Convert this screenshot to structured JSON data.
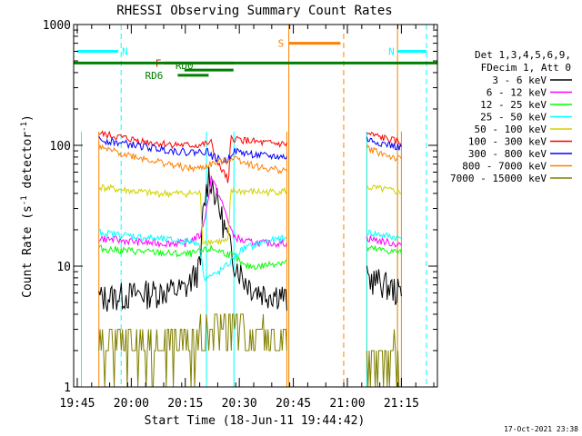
{
  "chart_data": {
    "type": "line",
    "title": "RHESSI Observing Summary Count Rates",
    "xlabel": "Start Time (18-Jun-11 19:44:42)",
    "ylabel_main": "Count Rate (s",
    "ylabel_sup1": "-1",
    "ylabel_mid": " detector",
    "ylabel_sup2": "-1",
    "ylabel_end": ")",
    "y_scale": "log",
    "xlim": [
      "19:44",
      "21:25"
    ],
    "ylim": [
      1,
      1000
    ],
    "x_ticks": [
      "19:45",
      "20:00",
      "20:15",
      "20:30",
      "20:45",
      "21:00",
      "21:15"
    ],
    "y_ticks": [
      "1",
      "10",
      "100",
      "1000"
    ],
    "timestamp": "17-Oct-2021 23:38",
    "legend_header": [
      "Det 1,3,4,5,6,9,",
      "FDecim 1, Att 0"
    ],
    "series": [
      {
        "name": "3 - 6 keV",
        "color": "#000000",
        "values": [
          [
            19.85,
            5.5
          ],
          [
            20.25,
            6.5
          ],
          [
            20.32,
            10
          ],
          [
            20.33,
            25
          ],
          [
            20.36,
            60
          ],
          [
            20.38,
            45
          ],
          [
            20.42,
            25
          ],
          [
            20.47,
            12
          ],
          [
            20.52,
            8
          ],
          [
            20.57,
            6.5
          ],
          [
            20.62,
            6
          ],
          [
            20.69,
            6
          ],
          [
            20.72,
            5.2
          ],
          [
            21.09,
            8
          ],
          [
            21.15,
            7.5
          ],
          [
            21.21,
            6.5
          ],
          [
            21.25,
            6
          ]
        ]
      },
      {
        "name": "6 - 12 keV",
        "color": "#ff00ff",
        "values": [
          [
            19.85,
            17
          ],
          [
            20.1,
            15.5
          ],
          [
            20.25,
            15.5
          ],
          [
            20.32,
            18
          ],
          [
            20.35,
            30
          ],
          [
            20.37,
            55
          ],
          [
            20.39,
            45
          ],
          [
            20.43,
            30
          ],
          [
            20.47,
            18
          ],
          [
            20.52,
            16
          ],
          [
            20.62,
            15.5
          ],
          [
            20.72,
            15.5
          ],
          [
            21.09,
            17
          ],
          [
            21.25,
            15
          ]
        ]
      },
      {
        "name": "12 - 25 keV",
        "color": "#00ff00",
        "values": [
          [
            19.85,
            14
          ],
          [
            20.1,
            13
          ],
          [
            20.25,
            12.5
          ],
          [
            20.31,
            13
          ],
          [
            20.37,
            14
          ],
          [
            20.43,
            13
          ],
          [
            20.48,
            12
          ],
          [
            20.52,
            10
          ],
          [
            20.6,
            10
          ],
          [
            20.65,
            10.5
          ],
          [
            20.72,
            11
          ],
          [
            21.09,
            14
          ],
          [
            21.25,
            13
          ]
        ]
      },
      {
        "name": "25 - 50 keV",
        "color": "#00ffff",
        "values": [
          [
            19.85,
            19
          ],
          [
            20.1,
            17
          ],
          [
            20.25,
            16
          ],
          [
            20.31,
            16
          ],
          [
            20.34,
            8
          ],
          [
            20.39,
            8.5
          ],
          [
            20.44,
            10
          ],
          [
            20.48,
            12
          ],
          [
            20.52,
            14
          ],
          [
            20.62,
            16
          ],
          [
            20.72,
            17
          ],
          [
            21.09,
            19
          ],
          [
            21.25,
            17
          ]
        ]
      },
      {
        "name": "50 - 100 keV",
        "color": "#d2d200",
        "values": [
          [
            19.85,
            45
          ],
          [
            20.1,
            40
          ],
          [
            20.25,
            40
          ],
          [
            20.32,
            40
          ],
          [
            20.33,
            16
          ],
          [
            20.45,
            16
          ],
          [
            20.46,
            42
          ],
          [
            20.62,
            41
          ],
          [
            20.72,
            42
          ],
          [
            21.09,
            45
          ],
          [
            21.25,
            41
          ]
        ]
      },
      {
        "name": "100 - 300 keV",
        "color": "#ff0000",
        "values": [
          [
            19.85,
            125
          ],
          [
            20.1,
            105
          ],
          [
            20.25,
            100
          ],
          [
            20.31,
            100
          ],
          [
            20.37,
            105
          ],
          [
            20.4,
            70
          ],
          [
            20.44,
            55
          ],
          [
            20.45,
            45
          ],
          [
            20.46,
            115
          ],
          [
            20.6,
            105
          ],
          [
            20.72,
            102
          ],
          [
            21.09,
            125
          ],
          [
            21.25,
            105
          ]
        ]
      },
      {
        "name": "300 - 800 keV",
        "color": "#0000ff",
        "values": [
          [
            19.85,
            112
          ],
          [
            20.1,
            95
          ],
          [
            20.25,
            88
          ],
          [
            20.31,
            88
          ],
          [
            20.35,
            90
          ],
          [
            20.38,
            80
          ],
          [
            20.44,
            73
          ],
          [
            20.47,
            90
          ],
          [
            20.6,
            82
          ],
          [
            20.72,
            80
          ],
          [
            21.09,
            112
          ],
          [
            21.25,
            95
          ]
        ]
      },
      {
        "name": "800 - 7000 keV",
        "color": "#ff8000",
        "values": [
          [
            19.85,
            95
          ],
          [
            20.1,
            75
          ],
          [
            20.25,
            65
          ],
          [
            20.31,
            64
          ],
          [
            20.37,
            70
          ],
          [
            20.44,
            75
          ],
          [
            20.47,
            80
          ],
          [
            20.6,
            65
          ],
          [
            20.72,
            62
          ],
          [
            21.09,
            95
          ],
          [
            21.25,
            75
          ]
        ]
      },
      {
        "name": "7000 - 15000 keV",
        "color": "#808000",
        "values": [
          [
            19.85,
            2.2
          ],
          [
            20.25,
            2.2
          ],
          [
            20.45,
            3.2
          ],
          [
            20.72,
            2.4
          ],
          [
            21.09,
            1.6
          ],
          [
            21.25,
            1.5
          ]
        ]
      }
    ],
    "flag_bars": [
      {
        "label": "N",
        "color": "#00ffff"
      },
      {
        "label": "N",
        "color": "#00ffff"
      },
      {
        "label": "S",
        "color": "#ff8000"
      },
      {
        "label": "F",
        "color": "#ff0000"
      },
      {
        "label": "RD0",
        "color": "#008000"
      },
      {
        "label": "RD6",
        "color": "#008000"
      }
    ],
    "grid": false
  }
}
